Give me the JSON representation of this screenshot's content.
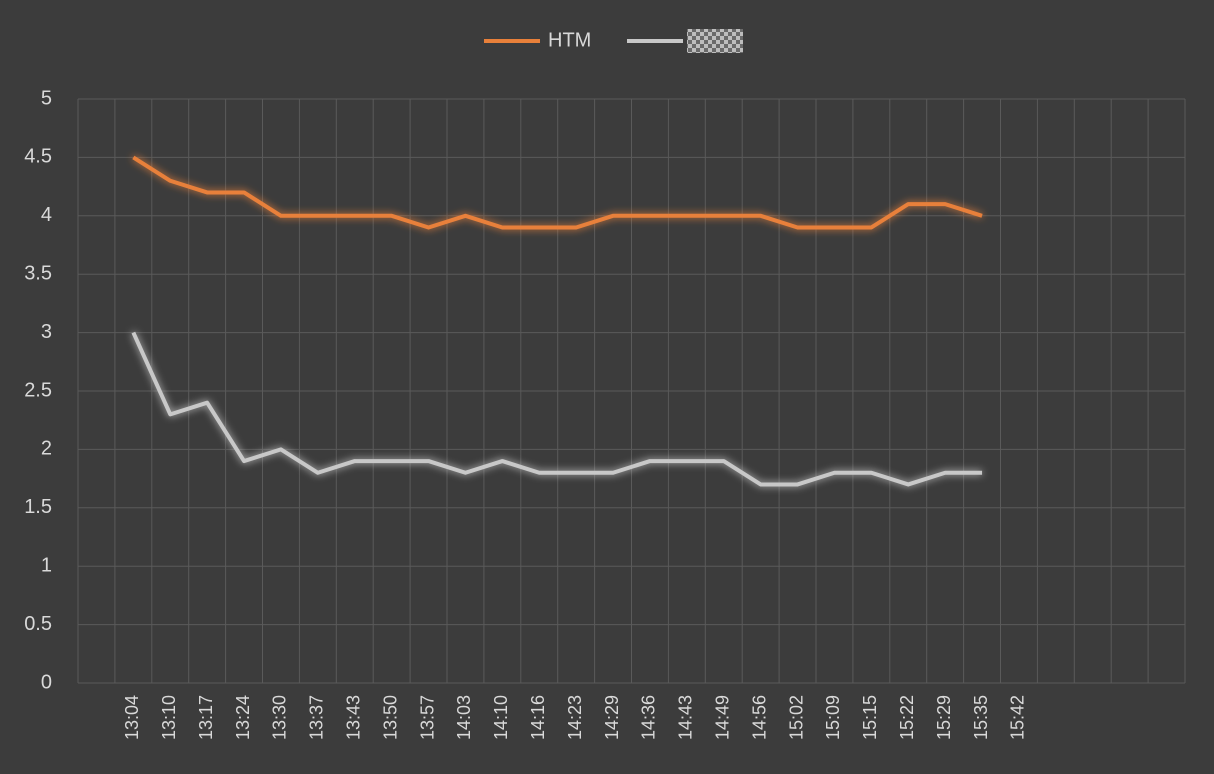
{
  "chart_data": {
    "type": "line",
    "categories": [
      null,
      "13:04",
      "13:10",
      "13:17",
      "13:24",
      "13:30",
      "13:37",
      "13:43",
      "13:50",
      "13:57",
      "14:03",
      "14:10",
      "14:16",
      "14:23",
      "14:29",
      "14:36",
      "14:43",
      "14:49",
      "14:56",
      "15:02",
      "15:09",
      "15:15",
      "15:22",
      "15:29",
      "15:35",
      "15:42",
      null,
      null,
      null,
      null
    ],
    "series": [
      {
        "name": "HTM",
        "color": "#e8803a",
        "values": [
          null,
          4.5,
          4.3,
          4.2,
          4.2,
          4.0,
          4.0,
          4.0,
          4.0,
          3.9,
          4.0,
          3.9,
          3.9,
          3.9,
          4.0,
          4.0,
          4.0,
          4.0,
          4.0,
          3.9,
          3.9,
          3.9,
          4.1,
          4.1,
          4.0,
          null,
          null,
          null,
          null,
          null
        ]
      },
      {
        "color": "#c8c8c8",
        "values": [
          null,
          3.0,
          2.3,
          2.4,
          1.9,
          2.0,
          1.8,
          1.9,
          1.9,
          1.9,
          1.8,
          1.9,
          1.8,
          1.8,
          1.8,
          1.9,
          1.9,
          1.9,
          1.7,
          1.7,
          1.8,
          1.8,
          1.7,
          1.8,
          1.8,
          null,
          null,
          null,
          null,
          null
        ]
      }
    ],
    "ylim": [
      0,
      5
    ],
    "yticks": [
      0,
      0.5,
      1,
      1.5,
      2,
      2.5,
      3,
      3.5,
      4,
      4.5,
      5
    ],
    "grid": true
  }
}
